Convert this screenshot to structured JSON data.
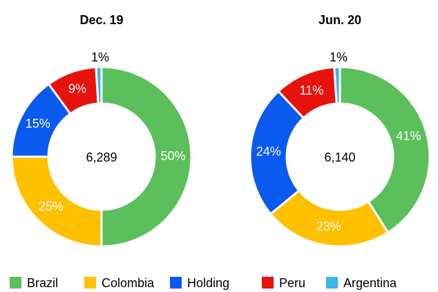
{
  "chart_data": [
    {
      "type": "pie",
      "title": "Dec. 19",
      "total_label": "6,289",
      "categories": [
        "Brazil",
        "Colombia",
        "Holding",
        "Peru",
        "Argentina"
      ],
      "values": [
        50,
        25,
        15,
        9,
        1
      ],
      "value_labels": [
        "50%",
        "25%",
        "15%",
        "9%",
        "1%"
      ],
      "colors": [
        "#5bbf5b",
        "#ffc000",
        "#0a5af0",
        "#e8120c",
        "#3fb4e6"
      ]
    },
    {
      "type": "pie",
      "title": "Jun. 20",
      "total_label": "6,140",
      "categories": [
        "Brazil",
        "Colombia",
        "Holding",
        "Peru",
        "Argentina"
      ],
      "values": [
        41,
        23,
        24,
        11,
        1
      ],
      "value_labels": [
        "41%",
        "23%",
        "24%",
        "11%",
        "1%"
      ],
      "colors": [
        "#5bbf5b",
        "#ffc000",
        "#0a5af0",
        "#e8120c",
        "#3fb4e6"
      ]
    }
  ]
}
